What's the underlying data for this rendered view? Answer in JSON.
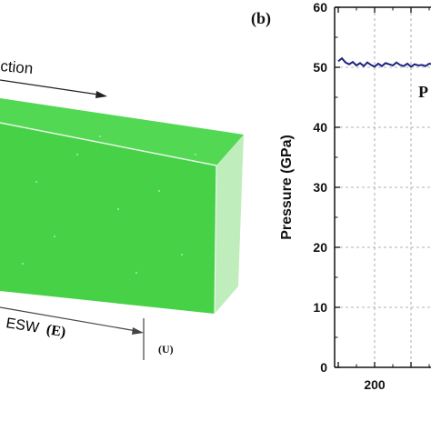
{
  "left_panel": {
    "direction_label": "ction",
    "esw_label": "ESW",
    "esw_code": "(E)",
    "u_label": "(U)",
    "slab_color": "#4dd64d"
  },
  "right_panel": {
    "panel_label": "(b)",
    "clipped_annotation": "P"
  },
  "chart_data": {
    "type": "line",
    "ylabel": "Pressure (GPa)",
    "xlabel": "",
    "ylim": [
      0,
      60
    ],
    "y_ticks": [
      "0",
      "10",
      "20",
      "30",
      "40",
      "50",
      "60"
    ],
    "x_visible_range": [
      145,
      290
    ],
    "x_ticks": [
      "200"
    ],
    "grid": true,
    "series": [
      {
        "color": "#1a237e",
        "x": [
          150,
          155,
          160,
          165,
          170,
          175,
          180,
          185,
          190,
          195,
          200,
          205,
          210,
          215,
          220,
          225,
          230,
          235,
          240,
          245,
          250,
          255,
          260,
          265,
          270,
          275,
          280
        ],
        "y": [
          51.0,
          51.5,
          50.8,
          50.5,
          50.9,
          50.3,
          50.7,
          50.2,
          50.8,
          50.4,
          50.1,
          50.6,
          50.2,
          50.7,
          50.5,
          50.3,
          50.8,
          50.4,
          50.2,
          50.6,
          50.1,
          50.5,
          50.3,
          50.4,
          50.2,
          50.6,
          50.5
        ]
      }
    ]
  }
}
